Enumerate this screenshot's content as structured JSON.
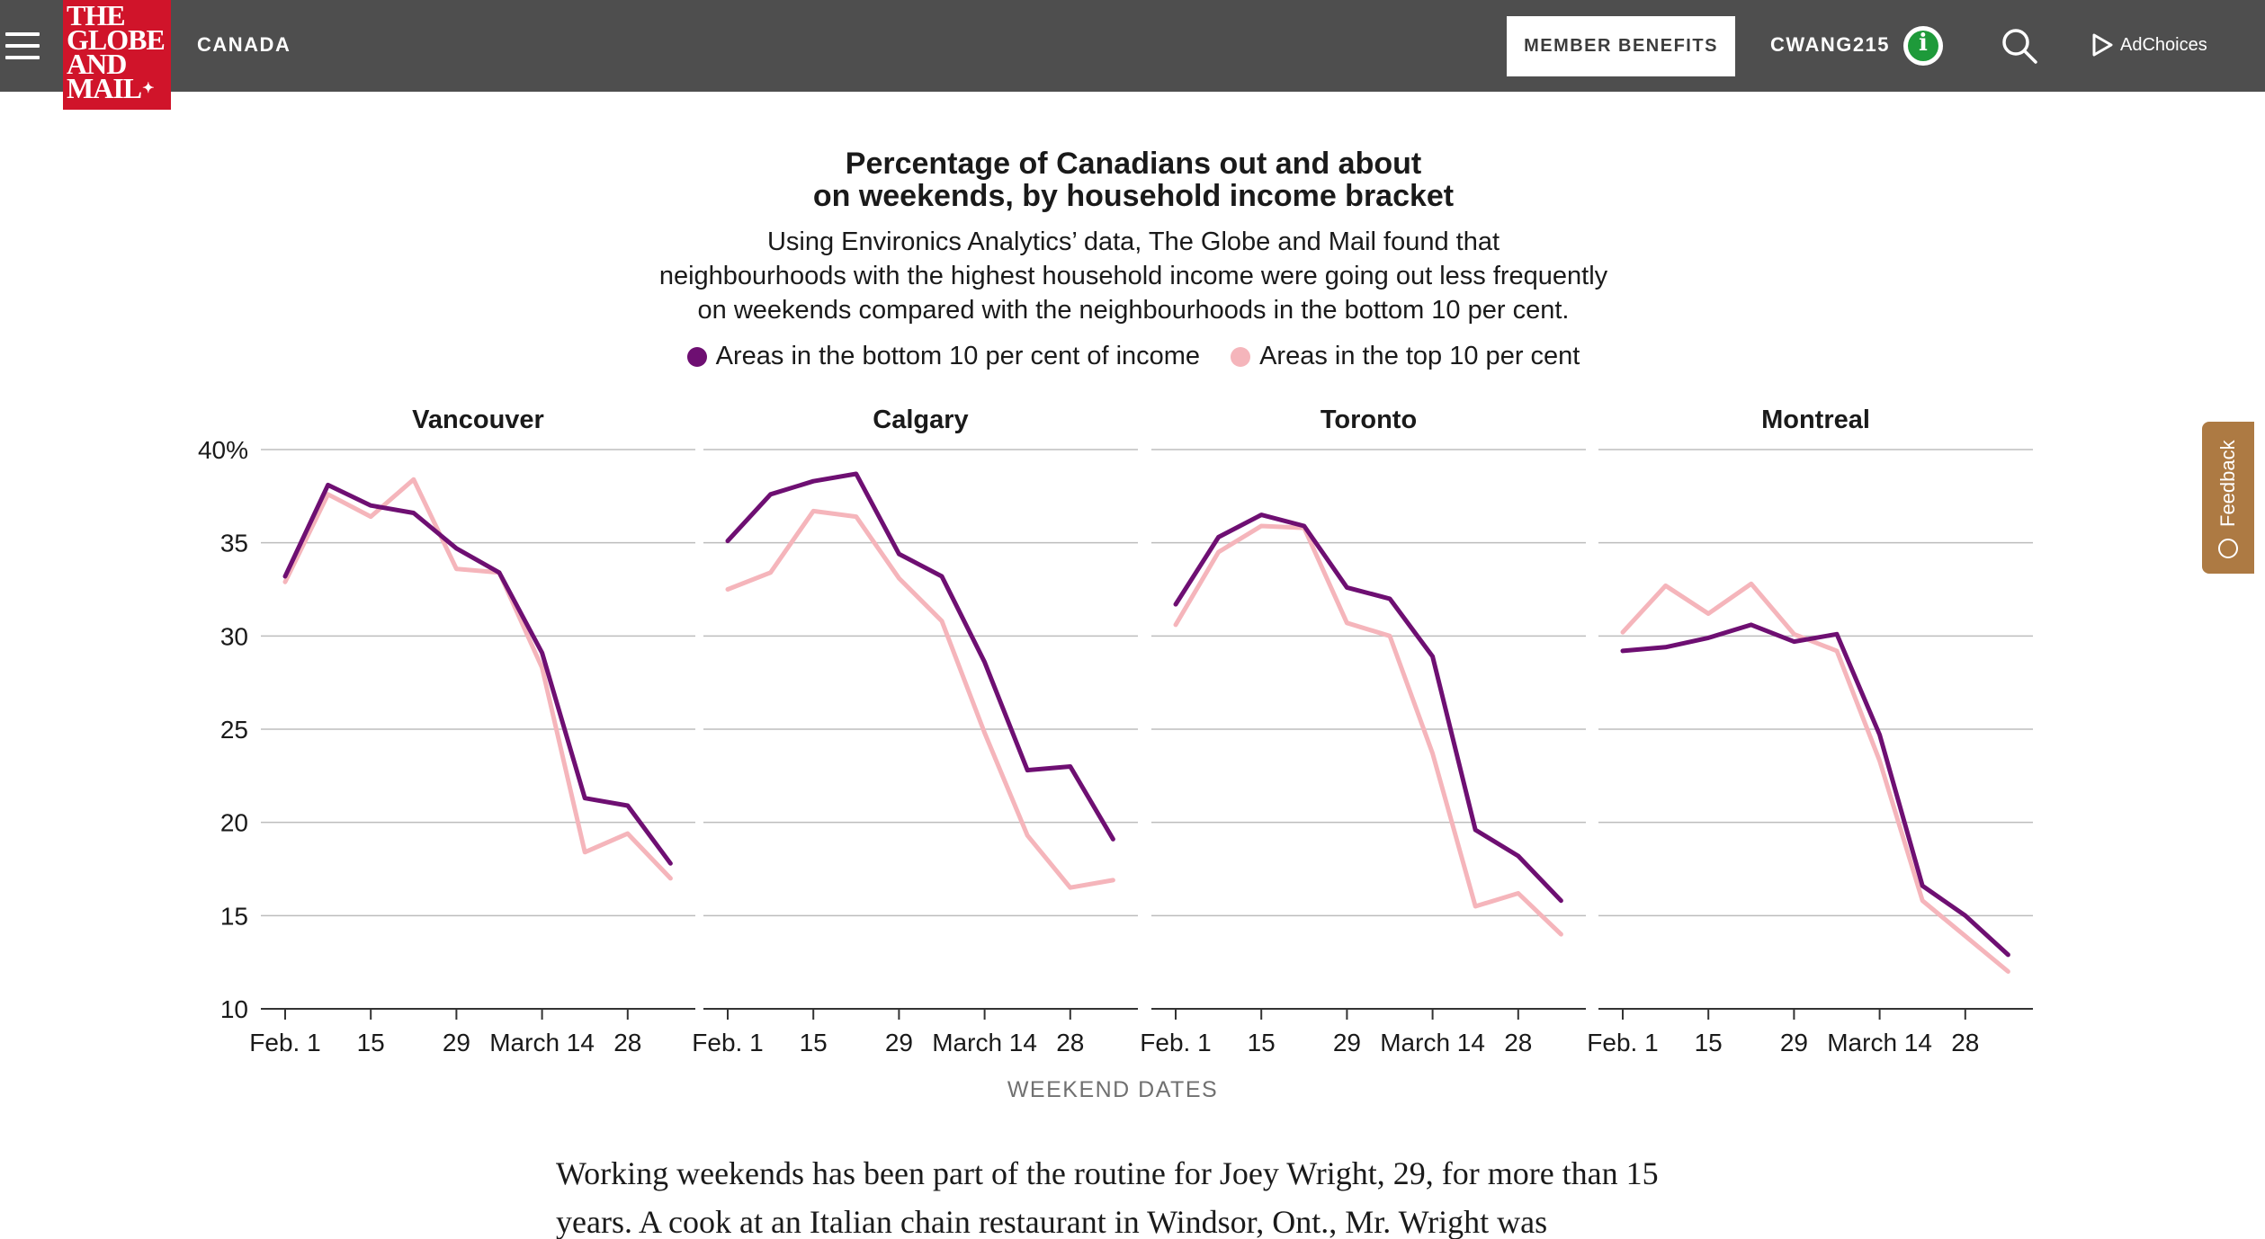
{
  "nav": {
    "section": "CANADA",
    "member_benefits": "MEMBER BENEFITS",
    "username": "CWANG215",
    "adchoices": "AdChoices",
    "logo_lines": [
      "THE",
      "GLOBE",
      "AND",
      "MAIL"
    ]
  },
  "feedback": "Feedback",
  "chart_data": {
    "type": "line",
    "title": "Percentage of Canadians out and about on weekends, by household income bracket",
    "title_lines": [
      "Percentage of Canadians out and about",
      "on weekends, by household income bracket"
    ],
    "subtitle_lines": [
      "Using Environics Analytics’ data, The Globe and Mail found that",
      "neighbourhoods with the highest household income were going out less frequently",
      "on weekends compared with the neighbourhoods in the bottom 10 per cent."
    ],
    "xlabel": "WEEKEND DATES",
    "ylim": [
      10,
      40
    ],
    "y_ticks": [
      10,
      15,
      20,
      25,
      30,
      35,
      40
    ],
    "y_tick_labels": [
      "10",
      "15",
      "20",
      "25",
      "30",
      "35",
      "40%"
    ],
    "x_tick_positions": [
      0,
      2,
      4,
      6,
      8
    ],
    "x_tick_labels": [
      "Feb. 1",
      "15",
      "29",
      "March 14",
      "28"
    ],
    "x_range": [
      -0.3,
      9.5
    ],
    "grid": true,
    "legend_position": "top",
    "colors": {
      "bottom": "#6e0f72",
      "top": "#f5b5bb",
      "grid": "#bdbdbd",
      "axis": "#333333"
    },
    "legend": [
      "Areas in the bottom 10 per cent of income",
      "Areas in the top 10 per cent"
    ],
    "panels": [
      {
        "name": "Vancouver",
        "x": [
          0,
          1,
          2,
          3,
          4,
          5,
          6,
          7,
          8,
          9
        ],
        "bottom": [
          33.2,
          38.1,
          37.0,
          36.6,
          34.7,
          33.4,
          29.1,
          21.3,
          20.9,
          17.8
        ],
        "top": [
          32.9,
          37.6,
          36.4,
          38.4,
          33.6,
          33.4,
          28.3,
          18.4,
          19.4,
          17.0
        ]
      },
      {
        "name": "Calgary",
        "x": [
          0,
          1,
          2,
          3,
          4,
          5,
          6,
          7,
          8,
          9
        ],
        "bottom": [
          35.1,
          37.6,
          38.3,
          38.7,
          34.4,
          33.2,
          28.6,
          22.8,
          23.0,
          19.1
        ],
        "top": [
          32.5,
          33.4,
          36.7,
          36.4,
          33.1,
          30.8,
          24.8,
          19.3,
          16.5,
          16.9
        ]
      },
      {
        "name": "Toronto",
        "x": [
          0,
          1,
          2,
          3,
          4,
          5,
          6,
          7,
          8,
          9
        ],
        "bottom": [
          31.7,
          35.3,
          36.5,
          35.9,
          32.6,
          32.0,
          28.9,
          19.6,
          18.2,
          15.8
        ],
        "top": [
          30.6,
          34.5,
          35.9,
          35.8,
          30.7,
          30.0,
          23.7,
          15.5,
          16.2,
          14.0
        ]
      },
      {
        "name": "Montreal",
        "x": [
          0,
          1,
          2,
          3,
          4,
          5,
          6,
          7,
          8,
          9
        ],
        "bottom": [
          29.2,
          29.4,
          29.9,
          30.6,
          29.7,
          30.1,
          24.7,
          16.6,
          15.0,
          12.9
        ],
        "top": [
          30.2,
          32.7,
          31.2,
          32.8,
          30.1,
          29.2,
          23.3,
          15.8,
          13.9,
          12.0
        ]
      }
    ]
  },
  "article": {
    "paragraph": "Working weekends has been part of the routine for Joey Wright, 29, for more than 15 years. A cook at an Italian chain restaurant in Windsor, Ont., Mr. Wright was"
  }
}
